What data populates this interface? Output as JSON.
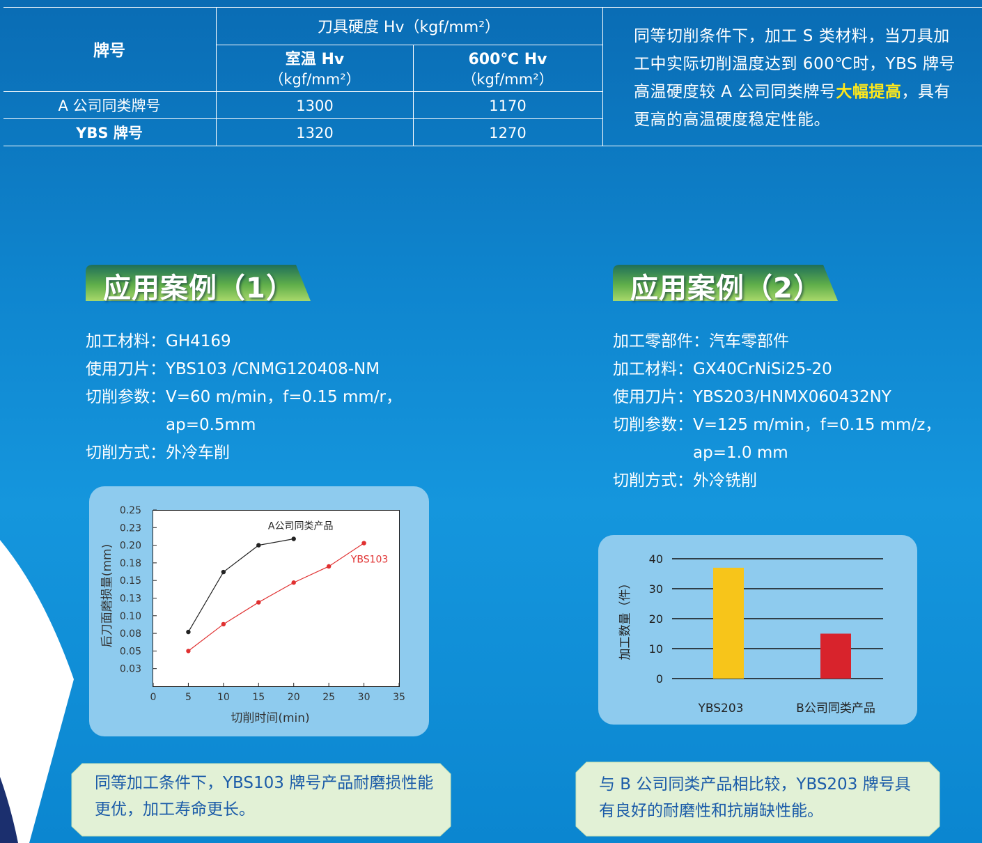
{
  "table": {
    "grade_header": "牌号",
    "hardness_header": "刀具硬度 Hv（kgf/mm²）",
    "columns": [
      {
        "name": "室温 Hv",
        "unit": "（kgf/mm²）"
      },
      {
        "name": "600℃ Hv",
        "unit": "（kgf/mm²）"
      }
    ],
    "rows": [
      [
        "A 公司同类牌号",
        1300,
        1170
      ],
      [
        "YBS 牌号",
        1320,
        1270
      ]
    ]
  },
  "note": {
    "before": "同等切削条件下，加工 S 类材料，当刀具加工中实际切削温度达到 600℃时，YBS 牌号高温硬度较 A 公司同类牌号",
    "highlight": "大幅提高",
    "after": "，具有更高的高温硬度稳定性能。"
  },
  "cases": [
    {
      "title": "应用案例（1）",
      "items": [
        {
          "label": "加工材料：",
          "lines": [
            "GH4169"
          ]
        },
        {
          "label": "使用刀片：",
          "lines": [
            "YBS103 /CNMG120408-NM"
          ]
        },
        {
          "label": "切削参数：",
          "lines": [
            "V=60 m/min，f=0.15 mm/r，",
            "ap=0.5mm"
          ]
        },
        {
          "label": "切削方式：",
          "lines": [
            "外冷车削"
          ]
        }
      ],
      "conclusion": "同等加工条件下，YBS103 牌号产品耐磨损性能更优，加工寿命更长。"
    },
    {
      "title": "应用案例（2）",
      "items": [
        {
          "label": "加工零部件：",
          "lines": [
            "汽车零部件"
          ]
        },
        {
          "label": "加工材料：",
          "lines": [
            "GX40CrNiSi25-20"
          ]
        },
        {
          "label": "使用刀片：",
          "lines": [
            "YBS203/HNMX060432NY"
          ]
        },
        {
          "label": "切削参数：",
          "lines": [
            "V=125 m/min，f=0.15 mm/z，",
            "ap=1.0 mm"
          ]
        },
        {
          "label": "切削方式：",
          "lines": [
            "外冷铣削"
          ]
        }
      ],
      "conclusion": "与 B 公司同类产品相比较，YBS203 牌号具有良好的耐磨性和抗崩缺性能。"
    }
  ],
  "chart_data": [
    {
      "type": "line",
      "x_label": "切削时间(min)",
      "y_label": "后刀面磨损量(mm)",
      "xlim": [
        0,
        35
      ],
      "xticks": [
        0,
        5,
        10,
        15,
        20,
        25,
        30,
        35
      ],
      "ylim": [
        0,
        0.25
      ],
      "yticks": [
        {
          "value": 0.025,
          "label": "0.03"
        },
        {
          "value": 0.05,
          "label": "0.05"
        },
        {
          "value": 0.075,
          "label": "0.08"
        },
        {
          "value": 0.1,
          "label": "0.10"
        },
        {
          "value": 0.125,
          "label": "0.13"
        },
        {
          "value": 0.15,
          "label": "0.15"
        },
        {
          "value": 0.175,
          "label": "0.18"
        },
        {
          "value": 0.2,
          "label": "0.20"
        },
        {
          "value": 0.225,
          "label": "0.23"
        },
        {
          "value": 0.25,
          "label": "0.25"
        }
      ],
      "series": [
        {
          "name": "A公司同类产品",
          "color": "#222222",
          "x": [
            5,
            10,
            15,
            20
          ],
          "values": [
            0.077,
            0.162,
            0.2,
            0.209
          ]
        },
        {
          "name": "YBS103",
          "color": "#e03030",
          "x": [
            5,
            10,
            15,
            20,
            25,
            30
          ],
          "values": [
            0.05,
            0.088,
            0.119,
            0.147,
            0.17,
            0.203
          ]
        }
      ]
    },
    {
      "type": "bar",
      "y_label": "加工数量（件）",
      "categories": [
        "YBS203",
        "B公司同类产品"
      ],
      "values": [
        37,
        15
      ],
      "colors": [
        "#f7c51a",
        "#d8232c"
      ],
      "ylim": [
        0,
        40
      ],
      "yticks": [
        0,
        10,
        20,
        30,
        40
      ],
      "grid": true
    }
  ]
}
